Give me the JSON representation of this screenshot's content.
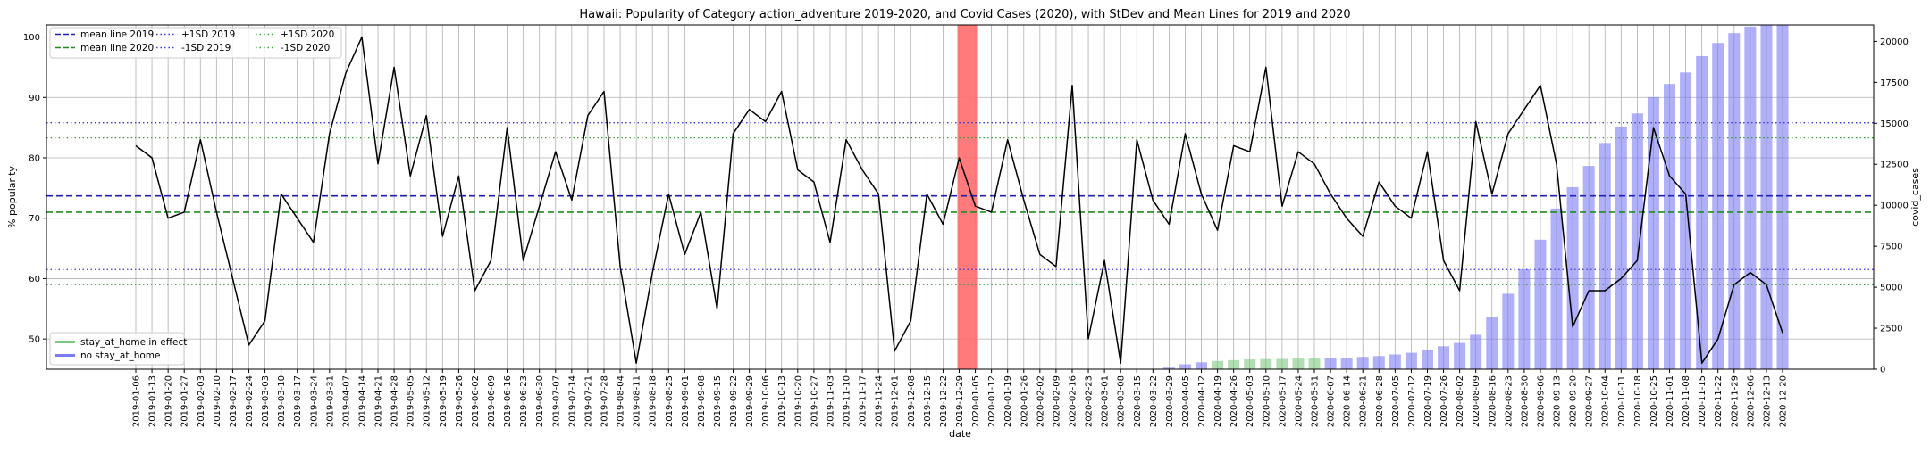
{
  "chart_data": {
    "type": "line",
    "title": "Hawaii: Popularity of Category action_adventure 2019-2020, and Covid Cases (2020), with StDev and Mean Lines for 2019 and 2020",
    "xlabel": "date",
    "ylabel": "% popularity",
    "y2label": "covid_cases",
    "ylim": [
      45,
      102
    ],
    "y2lim": [
      0,
      21000
    ],
    "yticks": [
      50,
      60,
      70,
      80,
      90,
      100
    ],
    "y2ticks": [
      0,
      2500,
      5000,
      7500,
      10000,
      12500,
      15000,
      17500,
      20000
    ],
    "grid": true,
    "x": [
      "2019-01-06",
      "2019-01-13",
      "2019-01-20",
      "2019-01-27",
      "2019-02-03",
      "2019-02-10",
      "2019-02-17",
      "2019-02-24",
      "2019-03-03",
      "2019-03-10",
      "2019-03-17",
      "2019-03-24",
      "2019-03-31",
      "2019-04-07",
      "2019-04-14",
      "2019-04-21",
      "2019-04-28",
      "2019-05-05",
      "2019-05-12",
      "2019-05-19",
      "2019-05-26",
      "2019-06-02",
      "2019-06-09",
      "2019-06-16",
      "2019-06-23",
      "2019-06-30",
      "2019-07-07",
      "2019-07-14",
      "2019-07-21",
      "2019-07-28",
      "2019-08-04",
      "2019-08-11",
      "2019-08-18",
      "2019-08-25",
      "2019-09-01",
      "2019-09-08",
      "2019-09-15",
      "2019-09-22",
      "2019-09-29",
      "2019-10-06",
      "2019-10-13",
      "2019-10-20",
      "2019-10-27",
      "2019-11-03",
      "2019-11-10",
      "2019-11-17",
      "2019-11-24",
      "2019-12-01",
      "2019-12-08",
      "2019-12-15",
      "2019-12-22",
      "2019-12-29",
      "2020-01-05",
      "2020-01-12",
      "2020-01-19",
      "2020-01-26",
      "2020-02-02",
      "2020-02-09",
      "2020-02-16",
      "2020-02-23",
      "2020-03-01",
      "2020-03-08",
      "2020-03-15",
      "2020-03-22",
      "2020-03-29",
      "2020-04-05",
      "2020-04-12",
      "2020-04-19",
      "2020-04-26",
      "2020-05-03",
      "2020-05-10",
      "2020-05-17",
      "2020-05-24",
      "2020-05-31",
      "2020-06-07",
      "2020-06-14",
      "2020-06-21",
      "2020-06-28",
      "2020-07-05",
      "2020-07-12",
      "2020-07-19",
      "2020-07-26",
      "2020-08-02",
      "2020-08-09",
      "2020-08-16",
      "2020-08-23",
      "2020-08-30",
      "2020-09-06",
      "2020-09-13",
      "2020-09-20",
      "2020-09-27",
      "2020-10-04",
      "2020-10-11",
      "2020-10-18",
      "2020-10-25",
      "2020-11-01",
      "2020-11-08",
      "2020-11-15",
      "2020-11-22",
      "2020-11-29",
      "2020-12-06",
      "2020-12-13",
      "2020-12-20"
    ],
    "tick_labels": [
      "2019-01-06",
      "2019-01-13",
      "2019-01-20",
      "2019-01-27",
      "2019-02-03",
      "2019-02-10",
      "2019-02-17",
      "2019-02-24",
      "2019-03-03",
      "2019-03-10",
      "2019-03-17",
      "2019-03-24",
      "2019-03-31",
      "2019-04-07",
      "2019-04-14",
      "2019-04-21",
      "2019-04-28",
      "2019-05-05",
      "2019-05-12",
      "2019-05-19",
      "2019-05-26",
      "2019-06-02",
      "2019-06-09",
      "2019-06-16",
      "2019-06-23",
      "2019-06-30",
      "2019-07-07",
      "2019-07-14",
      "2019-07-21",
      "2019-07-28",
      "2019-08-04",
      "2019-08-11",
      "2019-08-18",
      "2019-08-25",
      "2019-09-01",
      "2019-09-08",
      "2019-09-15",
      "2019-09-22",
      "2019-09-29",
      "2019-10-06",
      "2019-10-13",
      "2019-10-20",
      "2019-10-27",
      "2019-11-03",
      "2019-11-10",
      "2019-11-17",
      "2019-11-24",
      "2019-12-01",
      "2019-12-08",
      "2019-12-15",
      "2019-12-22",
      "2019-12-29",
      "2020-01-05",
      "2020-01-12",
      "2020-01-19",
      "2020-01-26",
      "2020-02-02",
      "2020-02-09",
      "2020-02-16",
      "2020-02-23",
      "2020-03-01",
      "2020-03-08",
      "2020-03-15",
      "2020-03-22",
      "2020-03-29",
      "2020-04-05",
      "2020-04-12",
      "2020-04-19",
      "2020-04-26",
      "2020-05-03",
      "2020-05-10",
      "2020-05-17",
      "2020-05-24",
      "2020-05-31",
      "2020-06-07",
      "2020-06-14",
      "2020-06-21",
      "2020-06-28",
      "2020-07-05",
      "2020-07-12",
      "2020-07-19",
      "2020-07-26",
      "2020-08-02",
      "2020-08-09",
      "2020-08-16",
      "2020-08-23",
      "2020-08-30",
      "2020-09-06",
      "2020-09-13",
      "2020-09-20",
      "2020-09-27",
      "2020-10-04",
      "2020-10-11",
      "2020-10-18",
      "2020-10-25",
      "2020-11-01",
      "2020-11-08",
      "2020-11-15",
      "2020-11-22",
      "2020-11-29",
      "2020-12-06",
      "2020-12-13",
      "2020-12-20"
    ],
    "popularity": [
      82,
      80,
      70,
      71,
      83,
      71,
      60,
      49,
      53,
      74,
      70,
      66,
      84,
      94,
      100,
      79,
      95,
      77,
      87,
      67,
      77,
      58,
      63,
      85,
      63,
      72,
      81,
      73,
      87,
      91,
      62,
      46,
      61,
      74,
      64,
      71,
      55,
      84,
      88,
      86,
      91,
      78,
      76,
      66,
      83,
      78,
      74,
      48,
      53,
      74,
      69,
      80,
      72,
      71,
      83,
      73,
      64,
      62,
      92,
      50,
      63,
      46,
      83,
      73,
      69,
      84,
      74,
      68,
      82,
      81,
      95,
      72,
      81,
      79,
      74,
      70,
      67,
      76,
      72,
      70,
      81,
      63,
      58,
      86,
      74,
      84,
      88,
      92,
      79,
      52,
      58,
      58,
      60,
      63,
      85,
      77,
      74,
      46,
      50,
      59,
      61,
      59,
      51
    ],
    "covid_cases": [
      0,
      0,
      0,
      0,
      0,
      0,
      0,
      0,
      0,
      0,
      0,
      0,
      0,
      0,
      0,
      0,
      0,
      0,
      0,
      0,
      0,
      0,
      0,
      0,
      0,
      0,
      0,
      0,
      0,
      0,
      0,
      0,
      0,
      0,
      0,
      0,
      0,
      0,
      0,
      0,
      0,
      0,
      0,
      0,
      0,
      0,
      0,
      0,
      0,
      0,
      0,
      0,
      0,
      0,
      0,
      0,
      0,
      0,
      0,
      0,
      0,
      0,
      0,
      0,
      100,
      300,
      420,
      500,
      550,
      600,
      620,
      630,
      650,
      660,
      680,
      700,
      750,
      800,
      900,
      1000,
      1200,
      1400,
      1600,
      2100,
      3200,
      4600,
      6100,
      7900,
      9800,
      11100,
      12400,
      13800,
      14800,
      15600,
      16600,
      17400,
      18100,
      19100,
      19900,
      20500,
      20900,
      21000,
      21000
    ],
    "stay_at_home": [
      false,
      false,
      false,
      false,
      false,
      false,
      false,
      false,
      false,
      false,
      false,
      false,
      false,
      false,
      false,
      false,
      false,
      false,
      false,
      false,
      false,
      false,
      false,
      false,
      false,
      false,
      false,
      false,
      false,
      false,
      false,
      false,
      false,
      false,
      false,
      false,
      false,
      false,
      false,
      false,
      false,
      false,
      false,
      false,
      false,
      false,
      false,
      false,
      false,
      false,
      false,
      false,
      false,
      false,
      false,
      false,
      false,
      false,
      false,
      false,
      false,
      false,
      false,
      false,
      false,
      false,
      false,
      true,
      true,
      true,
      true,
      true,
      true,
      true,
      false,
      false,
      false,
      false,
      false,
      false,
      false,
      false,
      false,
      false,
      false,
      false,
      false,
      false,
      false,
      false,
      false,
      false,
      false,
      false,
      false,
      false,
      false,
      false,
      false,
      false,
      false,
      false,
      false
    ],
    "mean_2019": 73.7,
    "mean_2020": 71.0,
    "plus1sd_2019": 85.8,
    "minus1sd_2019": 61.5,
    "plus1sd_2020": 83.3,
    "minus1sd_2020": 59.0,
    "highlight_span": [
      "2019-12-29",
      "2020-01-05"
    ],
    "colors": {
      "popularity": "#000000",
      "covid_no_stay": "#7b7bf5",
      "covid_stay": "#7fc97f",
      "mean_2019": "#1f1fb3",
      "mean_2020": "#218c21",
      "sd_2019": "#3a3ad6",
      "sd_2020": "#3a9a3a",
      "highlight": "#ff6b6b",
      "grid": "#b0b0b0"
    },
    "legend_lines": [
      {
        "label": "mean line 2019",
        "color": "#1f1fb3",
        "style": "dashed"
      },
      {
        "label": "mean line 2020",
        "color": "#218c21",
        "style": "dashed"
      },
      {
        "label": "+1SD 2019",
        "color": "#3a3ad6",
        "style": "dotted"
      },
      {
        "label": "-1SD 2019",
        "color": "#3a3ad6",
        "style": "dotted"
      },
      {
        "label": "+1SD 2020",
        "color": "#3a9a3a",
        "style": "dotted"
      },
      {
        "label": "-1SD 2020",
        "color": "#3a9a3a",
        "style": "dotted"
      }
    ],
    "legend_bars": [
      {
        "label": "stay_at_home in effect",
        "color": "#7fc97f"
      },
      {
        "label": "no stay_at_home",
        "color": "#7b7bf5"
      }
    ]
  }
}
